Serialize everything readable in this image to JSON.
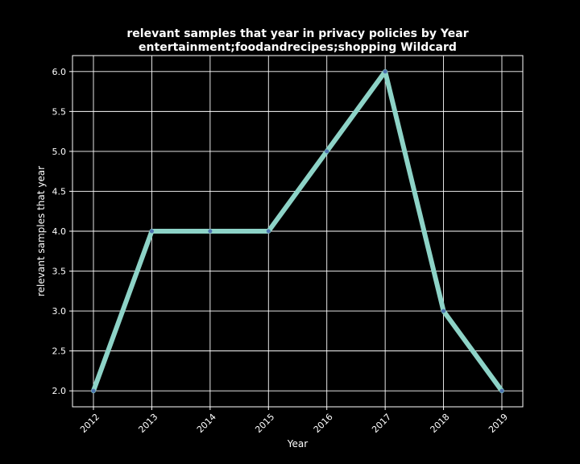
{
  "chart_data": {
    "type": "line",
    "title": "relevant samples that year in privacy policies by Year",
    "subtitle": "entertainment;foodandrecipes;shopping Wildcard",
    "xlabel": "Year",
    "ylabel": "relevant samples that year",
    "categories": [
      "2012",
      "2013",
      "2014",
      "2015",
      "2016",
      "2017",
      "2018",
      "2019"
    ],
    "values": [
      2,
      4,
      4,
      4,
      5,
      6,
      3,
      2
    ],
    "ylim": [
      1.8,
      6.2
    ],
    "yticks": [
      "2.0",
      "2.5",
      "3.0",
      "3.5",
      "4.0",
      "4.5",
      "5.0",
      "5.5",
      "6.0"
    ],
    "grid": true,
    "line_color": "#8dd3c7",
    "marker_color": "#4c72b0",
    "background_color": "#000000",
    "foreground_color": "#ffffff"
  }
}
